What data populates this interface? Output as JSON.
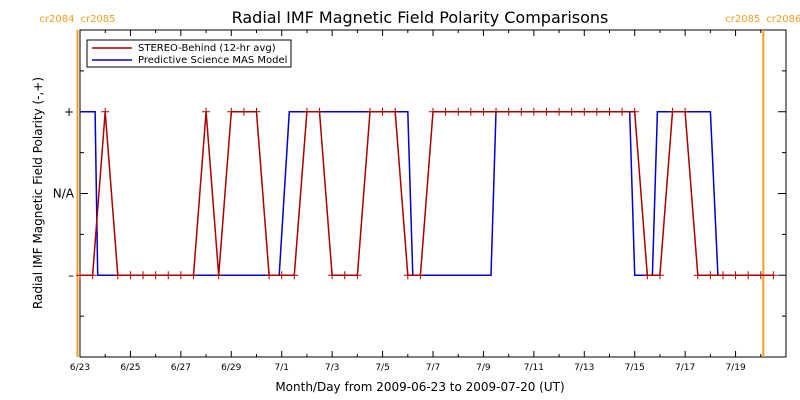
{
  "chart_data": {
    "type": "line",
    "title": "Radial IMF Magnetic Field Polarity Comparisons",
    "xlabel": "Month/Day from 2009-06-23 to 2009-07-20 (UT)",
    "ylabel": "Radial IMF Magnetic Field Polarity (-,+)",
    "x_range_days": [
      0,
      28
    ],
    "x_tick_labels": [
      {
        "day": 0,
        "label": "6/23"
      },
      {
        "day": 2,
        "label": "6/25"
      },
      {
        "day": 4,
        "label": "6/27"
      },
      {
        "day": 6,
        "label": "6/29"
      },
      {
        "day": 8,
        "label": "7/1"
      },
      {
        "day": 10,
        "label": "7/3"
      },
      {
        "day": 12,
        "label": "7/5"
      },
      {
        "day": 14,
        "label": "7/7"
      },
      {
        "day": 16,
        "label": "7/9"
      },
      {
        "day": 18,
        "label": "7/11"
      },
      {
        "day": 20,
        "label": "7/13"
      },
      {
        "day": 22,
        "label": "7/15"
      },
      {
        "day": 24,
        "label": "7/17"
      },
      {
        "day": 26,
        "label": "7/19"
      }
    ],
    "y_levels": [
      {
        "value": 1,
        "label": "+"
      },
      {
        "value": 0,
        "label": "N/A"
      },
      {
        "value": -1,
        "label": "–"
      }
    ],
    "ylim": [
      -2,
      2
    ],
    "grid": false,
    "legend_position": "top-left",
    "carrington_markers": [
      {
        "day": -0.1,
        "left": "cr2084",
        "right": "cr2085"
      },
      {
        "day": 27.1,
        "left": "cr2085",
        "right": "cr2086"
      }
    ],
    "series": [
      {
        "name": "STEREO-Behind (12-hr avg)",
        "color": "#aa0000",
        "marker": "+",
        "points": [
          {
            "day": 0.0,
            "v": -1
          },
          {
            "day": 0.5,
            "v": -1
          },
          {
            "day": 1.0,
            "v": 1
          },
          {
            "day": 1.5,
            "v": -1
          },
          {
            "day": 2.0,
            "v": -1
          },
          {
            "day": 2.5,
            "v": -1
          },
          {
            "day": 3.0,
            "v": -1
          },
          {
            "day": 3.5,
            "v": -1
          },
          {
            "day": 4.0,
            "v": -1
          },
          {
            "day": 4.5,
            "v": -1
          },
          {
            "day": 5.0,
            "v": 1
          },
          {
            "day": 5.5,
            "v": -1
          },
          {
            "day": 6.0,
            "v": 1
          },
          {
            "day": 6.5,
            "v": 1
          },
          {
            "day": 7.0,
            "v": 1
          },
          {
            "day": 7.5,
            "v": -1
          },
          {
            "day": 8.0,
            "v": -1
          },
          {
            "day": 8.5,
            "v": -1
          },
          {
            "day": 9.0,
            "v": 1
          },
          {
            "day": 9.5,
            "v": 1
          },
          {
            "day": 10.0,
            "v": -1
          },
          {
            "day": 10.5,
            "v": -1
          },
          {
            "day": 11.0,
            "v": -1
          },
          {
            "day": 11.5,
            "v": 1
          },
          {
            "day": 12.0,
            "v": 1
          },
          {
            "day": 12.5,
            "v": 1
          },
          {
            "day": 13.0,
            "v": -1
          },
          {
            "day": 13.5,
            "v": -1
          },
          {
            "day": 14.0,
            "v": 1
          },
          {
            "day": 14.5,
            "v": 1
          },
          {
            "day": 15.0,
            "v": 1
          },
          {
            "day": 15.5,
            "v": 1
          },
          {
            "day": 16.0,
            "v": 1
          },
          {
            "day": 16.5,
            "v": 1
          },
          {
            "day": 17.0,
            "v": 1
          },
          {
            "day": 17.5,
            "v": 1
          },
          {
            "day": 18.0,
            "v": 1
          },
          {
            "day": 18.5,
            "v": 1
          },
          {
            "day": 19.0,
            "v": 1
          },
          {
            "day": 19.5,
            "v": 1
          },
          {
            "day": 20.0,
            "v": 1
          },
          {
            "day": 20.5,
            "v": 1
          },
          {
            "day": 21.0,
            "v": 1
          },
          {
            "day": 21.5,
            "v": 1
          },
          {
            "day": 22.0,
            "v": 1
          },
          {
            "day": 22.5,
            "v": -1
          },
          {
            "day": 23.0,
            "v": -1
          },
          {
            "day": 23.5,
            "v": 1
          },
          {
            "day": 24.0,
            "v": 1
          },
          {
            "day": 24.5,
            "v": -1
          },
          {
            "day": 25.0,
            "v": -1
          },
          {
            "day": 25.5,
            "v": -1
          },
          {
            "day": 26.0,
            "v": -1
          },
          {
            "day": 26.5,
            "v": -1
          },
          {
            "day": 27.0,
            "v": -1
          },
          {
            "day": 27.5,
            "v": -1
          }
        ]
      },
      {
        "name": "Predictive Science MAS Model",
        "color": "#0000cc",
        "marker": "",
        "points": [
          {
            "day": 0.0,
            "v": 1
          },
          {
            "day": 0.6,
            "v": 1
          },
          {
            "day": 0.7,
            "v": -1
          },
          {
            "day": 7.9,
            "v": -1
          },
          {
            "day": 8.3,
            "v": 1
          },
          {
            "day": 13.0,
            "v": 1
          },
          {
            "day": 13.2,
            "v": -1
          },
          {
            "day": 16.3,
            "v": -1
          },
          {
            "day": 16.5,
            "v": 1
          },
          {
            "day": 21.8,
            "v": 1
          },
          {
            "day": 22.0,
            "v": -1
          },
          {
            "day": 22.7,
            "v": -1
          },
          {
            "day": 22.9,
            "v": 1
          },
          {
            "day": 25.0,
            "v": 1
          },
          {
            "day": 25.3,
            "v": -1
          },
          {
            "day": 27.5,
            "v": -1
          }
        ]
      }
    ]
  }
}
